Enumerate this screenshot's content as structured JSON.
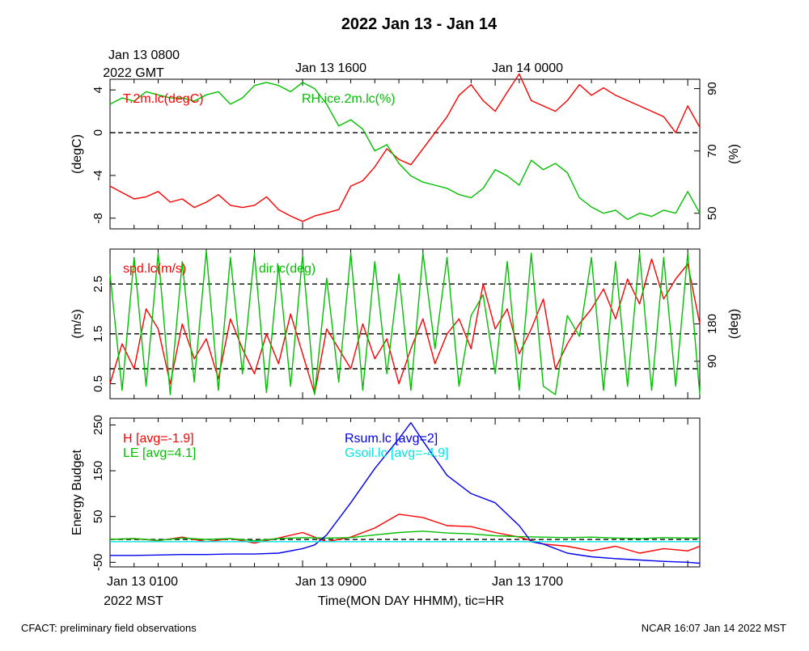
{
  "title": "2022 Jan 13 - Jan 14",
  "top_axis": {
    "start_line1": "Jan 13 0800",
    "start_line2": "2022 GMT",
    "ticks": [
      "Jan 13 1600",
      "Jan 14 0000"
    ]
  },
  "bottom_axis": {
    "start_line1": "Jan 13 0100",
    "start_line2": "2022 MST",
    "ticks": [
      "Jan 13 0900",
      "Jan 13 1700"
    ],
    "xlabel": "Time(MON DAY HHMM), tic=HR"
  },
  "footer": {
    "left": "CFACT: preliminary field observations",
    "right": "NCAR 16:07 Jan 14 2022 MST"
  },
  "colors": {
    "red": "#ff0000",
    "green": "#00c000",
    "blue": "#0000ee",
    "cyan": "#00e5e5",
    "dash": "#000000"
  },
  "chart_data": [
    {
      "type": "line",
      "panel": "temperature-rh",
      "x_unit": "hours since Jan 13 0100 MST",
      "xlim": [
        0,
        24.5
      ],
      "ylabel_left": "(degC)",
      "ylabel_right": "(%)",
      "ylim_left": [
        -9,
        5
      ],
      "ylim_right": [
        45,
        93
      ],
      "yticks_left": [
        "4",
        "0",
        "-4",
        "-8"
      ],
      "yticks_right": [
        "90",
        "70",
        "50"
      ],
      "ref_lines_left": [
        0
      ],
      "series": [
        {
          "name": "T.2m.lc(degC)",
          "axis": "left",
          "color": "red",
          "x": [
            0,
            0.5,
            1,
            1.5,
            2,
            2.5,
            3,
            3.5,
            4,
            4.5,
            5,
            5.5,
            6,
            6.5,
            7,
            7.5,
            8,
            8.5,
            9,
            9.5,
            10,
            10.5,
            11,
            11.5,
            12,
            12.5,
            13,
            13.5,
            14,
            14.5,
            15,
            15.5,
            16,
            16.5,
            17,
            17.5,
            18,
            18.5,
            19,
            19.5,
            20,
            20.5,
            21,
            21.5,
            22,
            22.5,
            23,
            23.5,
            24,
            24.5
          ],
          "y": [
            -5,
            -5.6,
            -6.2,
            -6,
            -5.5,
            -6.5,
            -6.2,
            -7,
            -6.5,
            -5.8,
            -6.8,
            -7,
            -6.8,
            -6,
            -7.2,
            -7.8,
            -8.3,
            -7.8,
            -7.5,
            -7.2,
            -5,
            -4.5,
            -3.2,
            -1.5,
            -2.5,
            -3,
            -1.5,
            0,
            1.5,
            3.5,
            4.5,
            3,
            2,
            3.8,
            5.5,
            3,
            2.5,
            2,
            3,
            4.5,
            3.5,
            4.2,
            3.5,
            3,
            2.5,
            2,
            1.5,
            0,
            2.5,
            0.5
          ]
        },
        {
          "name": "RH.ice.2m.lc(%)",
          "axis": "right",
          "color": "green",
          "x": [
            0,
            0.5,
            1,
            1.5,
            2,
            2.5,
            3,
            3.5,
            4,
            4.5,
            5,
            5.5,
            6,
            6.5,
            7,
            7.5,
            8,
            8.5,
            9,
            9.5,
            10,
            10.5,
            11,
            11.5,
            12,
            12.5,
            13,
            13.5,
            14,
            14.5,
            15,
            15.5,
            16,
            16.5,
            17,
            17.5,
            18,
            18.5,
            19,
            19.5,
            20,
            20.5,
            21,
            21.5,
            22,
            22.5,
            23,
            23.5,
            24,
            24.5
          ],
          "y": [
            85,
            87,
            86,
            89,
            88,
            87,
            87,
            86,
            88,
            89,
            85,
            87,
            91,
            92,
            91,
            89,
            92,
            90,
            85,
            78,
            80,
            77,
            70,
            72,
            66,
            62,
            60,
            59,
            58,
            56,
            55,
            58,
            64,
            62,
            59,
            67,
            64,
            66,
            63,
            55,
            52,
            50,
            51,
            48,
            50,
            49,
            51,
            50,
            57,
            50
          ]
        }
      ]
    },
    {
      "type": "line",
      "panel": "wind",
      "x_unit": "hours since Jan 13 0100 MST",
      "xlim": [
        0,
        24.5
      ],
      "ylabel_left": "(m/s)",
      "ylabel_right": "(deg)",
      "ylim_left": [
        0.2,
        3.2
      ],
      "ylim_right": [
        0,
        360
      ],
      "yticks_left": [
        "0.5",
        "1.5",
        "2.5"
      ],
      "yticks_right": [
        "90",
        "180"
      ],
      "ref_lines_left": [
        0.8,
        1.5,
        2.5
      ],
      "series": [
        {
          "name": "spd.lc(m/s)",
          "axis": "left",
          "color": "red",
          "x": [
            0,
            0.5,
            1,
            1.5,
            2,
            2.5,
            3,
            3.5,
            4,
            4.5,
            5,
            5.5,
            6,
            6.5,
            7,
            7.5,
            8,
            8.5,
            9,
            9.5,
            10,
            10.5,
            11,
            11.5,
            12,
            12.5,
            13,
            13.5,
            14,
            14.5,
            15,
            15.5,
            16,
            16.5,
            17,
            17.5,
            18,
            18.5,
            19,
            19.5,
            20,
            20.5,
            21,
            21.5,
            22,
            22.5,
            23,
            23.5,
            24,
            24.5
          ],
          "y": [
            0.5,
            1.3,
            0.8,
            2.0,
            1.6,
            0.5,
            1.7,
            1.0,
            1.4,
            0.6,
            1.8,
            1.2,
            0.7,
            1.5,
            0.9,
            1.9,
            1.1,
            0.3,
            1.6,
            1.2,
            0.8,
            1.7,
            1.0,
            1.4,
            0.5,
            1.2,
            1.8,
            0.9,
            1.5,
            1.8,
            1.2,
            2.5,
            1.6,
            2.0,
            1.1,
            1.6,
            2.2,
            0.8,
            1.3,
            1.7,
            2.0,
            2.4,
            1.8,
            2.6,
            2.1,
            3.0,
            2.2,
            2.6,
            2.9,
            1.7
          ]
        },
        {
          "name": "dir.lc(deg)",
          "axis": "right",
          "color": "green",
          "x": [
            0,
            0.5,
            1,
            1.5,
            2,
            2.5,
            3,
            3.5,
            4,
            4.5,
            5,
            5.5,
            6,
            6.5,
            7,
            7.5,
            8,
            8.5,
            9,
            9.5,
            10,
            10.5,
            11,
            11.5,
            12,
            12.5,
            13,
            13.5,
            14,
            14.5,
            15,
            15.5,
            16,
            16.5,
            17,
            17.5,
            18,
            18.5,
            19,
            19.5,
            20,
            20.5,
            21,
            21.5,
            22,
            22.5,
            23,
            23.5,
            24,
            24.5
          ],
          "y": [
            300,
            20,
            340,
            30,
            350,
            10,
            330,
            40,
            355,
            20,
            340,
            60,
            350,
            15,
            320,
            30,
            345,
            10,
            290,
            40,
            350,
            20,
            330,
            60,
            300,
            20,
            350,
            120,
            340,
            30,
            200,
            250,
            60,
            330,
            20,
            350,
            30,
            10,
            200,
            150,
            340,
            20,
            330,
            30,
            350,
            20,
            340,
            30,
            350,
            10
          ]
        }
      ]
    },
    {
      "type": "line",
      "panel": "energy-budget",
      "x_unit": "hours since Jan 13 0100 MST",
      "xlim": [
        0,
        24.5
      ],
      "ylabel": "Energy Budget",
      "ylim": [
        -60,
        265
      ],
      "yticks": [
        "250",
        "150",
        "50",
        "-50"
      ],
      "ref_lines": [
        0
      ],
      "series": [
        {
          "name": "H",
          "legend": "H [avg=-1.9]",
          "color": "red",
          "x": [
            0,
            1,
            2,
            3,
            4,
            5,
            6,
            7,
            8,
            9,
            10,
            11,
            12,
            13,
            14,
            15,
            16,
            17,
            18,
            19,
            20,
            21,
            22,
            23,
            24,
            24.5
          ],
          "y": [
            0,
            2,
            -3,
            5,
            -5,
            2,
            -8,
            3,
            15,
            -5,
            5,
            25,
            55,
            48,
            30,
            28,
            15,
            5,
            -10,
            -15,
            -25,
            -15,
            -30,
            -20,
            -25,
            -15
          ]
        },
        {
          "name": "LE",
          "legend": "LE [avg=4.1]",
          "color": "green",
          "x": [
            0,
            1,
            2,
            3,
            4,
            5,
            6,
            7,
            8,
            9,
            10,
            11,
            12,
            13,
            14,
            15,
            16,
            17,
            18,
            19,
            20,
            21,
            22,
            23,
            24,
            24.5
          ],
          "y": [
            0,
            2,
            -2,
            3,
            0,
            2,
            -3,
            2,
            4,
            3,
            4,
            10,
            15,
            18,
            14,
            12,
            8,
            6,
            5,
            4,
            5,
            3,
            2,
            4,
            3,
            3
          ]
        },
        {
          "name": "Rsum.lc",
          "legend": "Rsum.lc [avg=2]",
          "color": "blue",
          "x": [
            0,
            1,
            2,
            3,
            4,
            5,
            6,
            7,
            8,
            8.5,
            9,
            10,
            11,
            12,
            12.5,
            13,
            14,
            15,
            16,
            17,
            17.5,
            18,
            19,
            20,
            21,
            22,
            23,
            24,
            24.5
          ],
          "y": [
            -35,
            -35,
            -34,
            -33,
            -33,
            -32,
            -32,
            -30,
            -20,
            -12,
            10,
            80,
            155,
            220,
            255,
            215,
            140,
            100,
            80,
            30,
            -5,
            -10,
            -30,
            -38,
            -42,
            -45,
            -48,
            -50,
            -52
          ]
        },
        {
          "name": "Gsoil.lc",
          "legend": "Gsoil.lc [avg=-4.9]",
          "color": "cyan",
          "x": [
            0,
            24.5
          ],
          "y": [
            -4.9,
            -4.9
          ]
        }
      ]
    }
  ]
}
